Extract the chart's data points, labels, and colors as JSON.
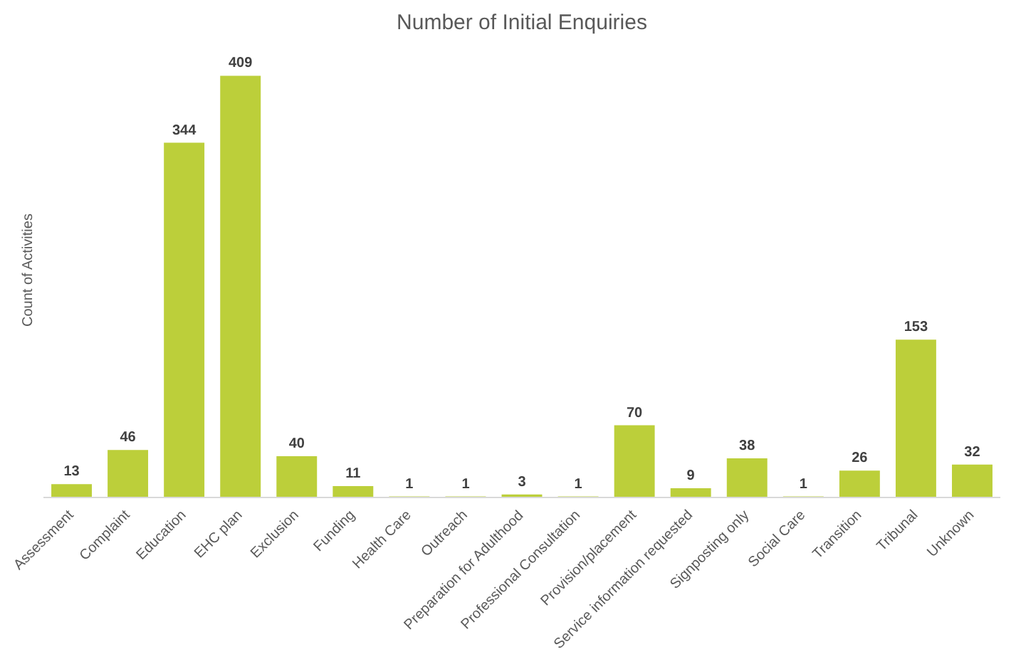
{
  "chart_data": {
    "type": "bar",
    "title": "Number of Initial Enquiries",
    "ylabel": "Count of Activities",
    "categories": [
      "Assessment",
      "Complaint",
      "Education",
      "EHC plan",
      "Exclusion",
      "Funding",
      "Health Care",
      "Outreach",
      "Preparation for Adulthood",
      "Professional Consultation",
      "Provision/placement",
      "Service information requested",
      "Signposting only",
      "Social Care",
      "Transition",
      "Tribunal",
      "Unknown"
    ],
    "values": [
      13,
      46,
      344,
      409,
      40,
      11,
      1,
      1,
      3,
      1,
      70,
      9,
      38,
      1,
      26,
      153,
      32
    ],
    "color": "#bccf3a",
    "data_labels": true,
    "grid": false
  }
}
